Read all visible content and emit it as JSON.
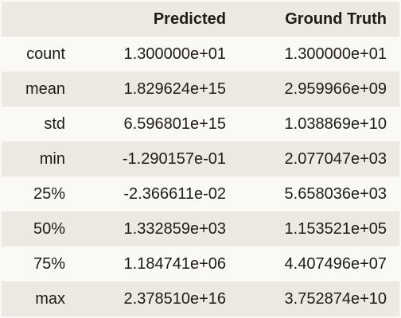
{
  "table": {
    "headers": [
      "",
      "Predicted",
      "Ground Truth"
    ],
    "rows": [
      {
        "label": "count",
        "predicted": "1.300000e+01",
        "ground_truth": "1.300000e+01"
      },
      {
        "label": "mean",
        "predicted": "1.829624e+15",
        "ground_truth": "2.959966e+09"
      },
      {
        "label": "std",
        "predicted": "6.596801e+15",
        "ground_truth": "1.038869e+10"
      },
      {
        "label": "min",
        "predicted": "-1.290157e-01",
        "ground_truth": "2.077047e+03"
      },
      {
        "label": "25%",
        "predicted": "-2.366611e-02",
        "ground_truth": "5.658036e+03"
      },
      {
        "label": "50%",
        "predicted": "1.332859e+03",
        "ground_truth": "1.153521e+05"
      },
      {
        "label": "75%",
        "predicted": "1.184741e+06",
        "ground_truth": "4.407496e+07"
      },
      {
        "label": "max",
        "predicted": "2.378510e+16",
        "ground_truth": "3.752874e+10"
      }
    ]
  }
}
